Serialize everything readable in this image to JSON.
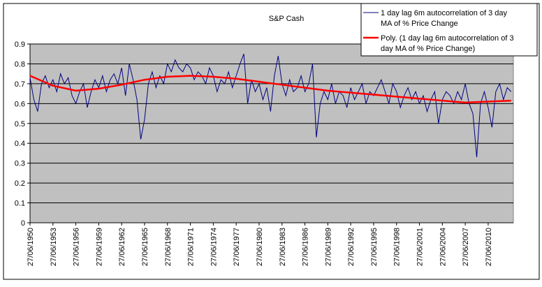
{
  "chart_data": {
    "type": "line",
    "title": "S&P Cash",
    "xlabel": "",
    "ylabel": "",
    "ylim": [
      0,
      0.9
    ],
    "xlim": [
      1950.0,
      2013.3
    ],
    "grid": true,
    "legend_position": "top-right",
    "y_ticks": [
      "0",
      "0.1",
      "0.2",
      "0.3",
      "0.4",
      "0.5",
      "0.6",
      "0.7",
      "0.8",
      "0.9"
    ],
    "x_ticks": [
      "27/06/1950",
      "27/06/1953",
      "27/06/1956",
      "27/06/1959",
      "27/06/1962",
      "27/06/1965",
      "27/06/1968",
      "27/06/1971",
      "27/06/1974",
      "27/06/1977",
      "27/06/1980",
      "27/06/1983",
      "27/06/1986",
      "27/06/1989",
      "27/06/1992",
      "27/06/1995",
      "27/06/1998",
      "27/06/2001",
      "27/06/2004",
      "27/06/2007",
      "27/06/2010"
    ],
    "colors": {
      "plot_bg": "#C0C0C0",
      "series": "#000080",
      "trend": "#FF0000"
    },
    "series": [
      {
        "name": "1 day lag 6m autocorrelation of 3 day MA of % Price Change",
        "x_start": 1950.0,
        "x_step_years": 0.5,
        "values": [
          0.73,
          0.62,
          0.56,
          0.7,
          0.74,
          0.68,
          0.72,
          0.66,
          0.75,
          0.7,
          0.73,
          0.64,
          0.6,
          0.66,
          0.7,
          0.58,
          0.66,
          0.72,
          0.68,
          0.74,
          0.66,
          0.72,
          0.75,
          0.7,
          0.78,
          0.64,
          0.8,
          0.72,
          0.62,
          0.42,
          0.52,
          0.7,
          0.76,
          0.68,
          0.74,
          0.7,
          0.8,
          0.76,
          0.82,
          0.78,
          0.76,
          0.8,
          0.78,
          0.72,
          0.76,
          0.74,
          0.7,
          0.78,
          0.74,
          0.66,
          0.72,
          0.7,
          0.76,
          0.68,
          0.74,
          0.8,
          0.85,
          0.6,
          0.72,
          0.66,
          0.7,
          0.62,
          0.68,
          0.56,
          0.74,
          0.84,
          0.7,
          0.64,
          0.72,
          0.66,
          0.68,
          0.74,
          0.66,
          0.7,
          0.8,
          0.43,
          0.6,
          0.66,
          0.62,
          0.7,
          0.6,
          0.66,
          0.64,
          0.58,
          0.68,
          0.62,
          0.66,
          0.7,
          0.6,
          0.66,
          0.64,
          0.68,
          0.72,
          0.66,
          0.6,
          0.7,
          0.66,
          0.58,
          0.64,
          0.68,
          0.62,
          0.66,
          0.6,
          0.64,
          0.56,
          0.62,
          0.66,
          0.5,
          0.62,
          0.66,
          0.64,
          0.6,
          0.66,
          0.62,
          0.7,
          0.6,
          0.55,
          0.33,
          0.6,
          0.66,
          0.58,
          0.48,
          0.66,
          0.7,
          0.62,
          0.68,
          0.66
        ]
      },
      {
        "name": "Poly. (1 day lag 6m autocorrelation of 3 day MA of % Price Change)",
        "x": [
          1950,
          1953,
          1956,
          1959,
          1962,
          1965,
          1968,
          1971,
          1974,
          1977,
          1980,
          1983,
          1986,
          1989,
          1992,
          1995,
          1998,
          2001,
          2004,
          2007,
          2010,
          2013
        ],
        "values": [
          0.74,
          0.69,
          0.665,
          0.675,
          0.695,
          0.72,
          0.735,
          0.74,
          0.735,
          0.725,
          0.71,
          0.695,
          0.68,
          0.665,
          0.655,
          0.645,
          0.635,
          0.625,
          0.615,
          0.605,
          0.61,
          0.615
        ]
      }
    ]
  }
}
